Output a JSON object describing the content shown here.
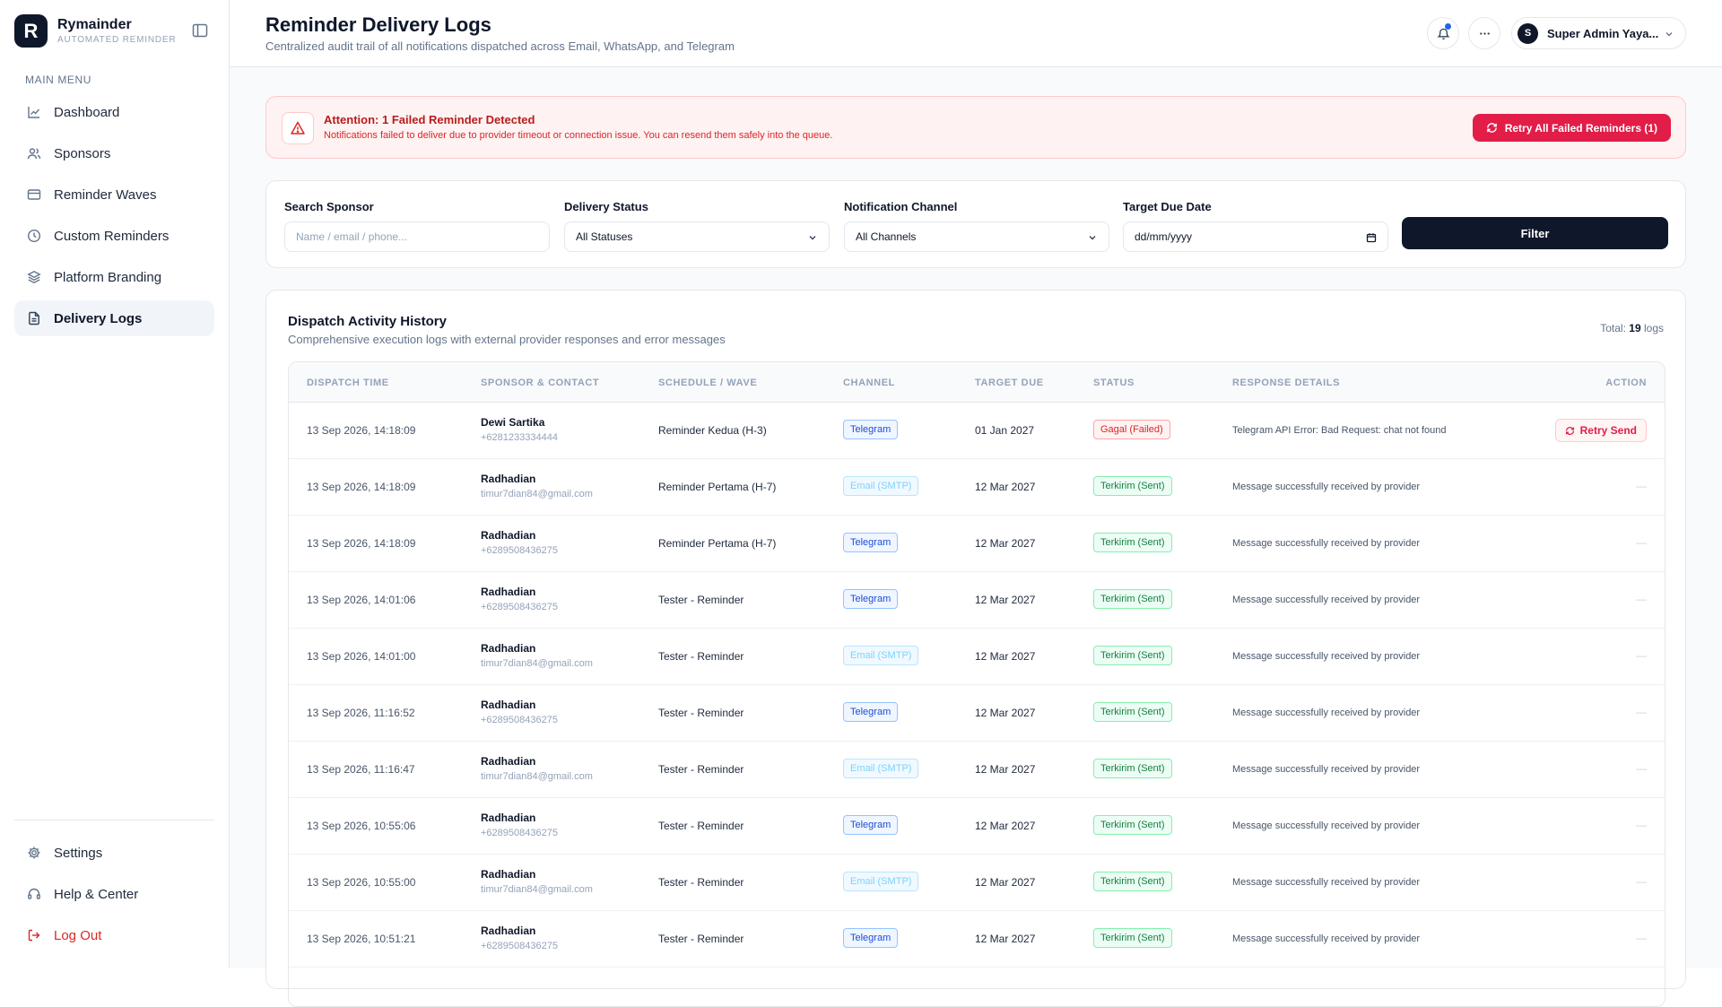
{
  "brand": {
    "logo_letter": "R",
    "name": "Rymainder",
    "tagline": "AUTOMATED REMINDER"
  },
  "sidebar": {
    "menu_label": "MAIN MENU",
    "items": [
      {
        "label": "Dashboard",
        "icon": "chart-line-icon"
      },
      {
        "label": "Sponsors",
        "icon": "users-icon"
      },
      {
        "label": "Reminder Waves",
        "icon": "card-icon"
      },
      {
        "label": "Custom Reminders",
        "icon": "clock-icon"
      },
      {
        "label": "Platform Branding",
        "icon": "layers-icon"
      },
      {
        "label": "Delivery Logs",
        "icon": "file-icon",
        "active": true
      }
    ],
    "bottom_items": [
      {
        "label": "Settings",
        "icon": "gear-icon"
      },
      {
        "label": "Help & Center",
        "icon": "headset-icon"
      },
      {
        "label": "Log Out",
        "icon": "logout-icon"
      }
    ]
  },
  "header": {
    "title": "Reminder Delivery Logs",
    "subtitle": "Centralized audit trail of all notifications dispatched across Email, WhatsApp, and Telegram",
    "user_initial": "S",
    "user_name": "Super Admin Yaya..."
  },
  "alert": {
    "title": "Attention: 1 Failed Reminder Detected",
    "text": "Notifications failed to deliver due to provider timeout or connection issue. You can resend them safely into the queue.",
    "button": "Retry All Failed Reminders (1)"
  },
  "filters": {
    "search": {
      "label": "Search Sponsor",
      "placeholder": "Name / email / phone..."
    },
    "status": {
      "label": "Delivery Status",
      "value": "All Statuses"
    },
    "channel": {
      "label": "Notification Channel",
      "value": "All Channels"
    },
    "date": {
      "label": "Target Due Date",
      "value": "dd/mm/yyyy"
    },
    "button": "Filter"
  },
  "table": {
    "title": "Dispatch Activity History",
    "subtitle": "Comprehensive execution logs with external provider responses and error messages",
    "total_label": "Total:",
    "total_count": "19",
    "total_unit": "logs",
    "columns": [
      "DISPATCH TIME",
      "SPONSOR & CONTACT",
      "SCHEDULE / WAVE",
      "CHANNEL",
      "TARGET DUE",
      "STATUS",
      "RESPONSE DETAILS",
      "ACTION"
    ],
    "rows": [
      {
        "time": "13 Sep 2026, 14:18:09",
        "name": "Dewi Sartika",
        "contact": "+6281233334444",
        "wave": "Reminder Kedua (H-3)",
        "channel": "Telegram",
        "due": "01 Jan 2027",
        "status": "Gagal (Failed)",
        "response": "Telegram API Error: Bad Request: chat not found",
        "action": "Retry Send"
      },
      {
        "time": "13 Sep 2026, 14:18:09",
        "name": "Radhadian",
        "contact": "timur7dian84@gmail.com",
        "wave": "Reminder Pertama (H-7)",
        "channel": "Email (SMTP)",
        "due": "12 Mar 2027",
        "status": "Terkirim (Sent)",
        "response": "Message successfully received by provider",
        "action": "—"
      },
      {
        "time": "13 Sep 2026, 14:18:09",
        "name": "Radhadian",
        "contact": "+6289508436275",
        "wave": "Reminder Pertama (H-7)",
        "channel": "Telegram",
        "due": "12 Mar 2027",
        "status": "Terkirim (Sent)",
        "response": "Message successfully received by provider",
        "action": "—"
      },
      {
        "time": "13 Sep 2026, 14:01:06",
        "name": "Radhadian",
        "contact": "+6289508436275",
        "wave": "Tester - Reminder",
        "channel": "Telegram",
        "due": "12 Mar 2027",
        "status": "Terkirim (Sent)",
        "response": "Message successfully received by provider",
        "action": "—"
      },
      {
        "time": "13 Sep 2026, 14:01:00",
        "name": "Radhadian",
        "contact": "timur7dian84@gmail.com",
        "wave": "Tester - Reminder",
        "channel": "Email (SMTP)",
        "due": "12 Mar 2027",
        "status": "Terkirim (Sent)",
        "response": "Message successfully received by provider",
        "action": "—"
      },
      {
        "time": "13 Sep 2026, 11:16:52",
        "name": "Radhadian",
        "contact": "+6289508436275",
        "wave": "Tester - Reminder",
        "channel": "Telegram",
        "due": "12 Mar 2027",
        "status": "Terkirim (Sent)",
        "response": "Message successfully received by provider",
        "action": "—"
      },
      {
        "time": "13 Sep 2026, 11:16:47",
        "name": "Radhadian",
        "contact": "timur7dian84@gmail.com",
        "wave": "Tester - Reminder",
        "channel": "Email (SMTP)",
        "due": "12 Mar 2027",
        "status": "Terkirim (Sent)",
        "response": "Message successfully received by provider",
        "action": "—"
      },
      {
        "time": "13 Sep 2026, 10:55:06",
        "name": "Radhadian",
        "contact": "+6289508436275",
        "wave": "Tester - Reminder",
        "channel": "Telegram",
        "due": "12 Mar 2027",
        "status": "Terkirim (Sent)",
        "response": "Message successfully received by provider",
        "action": "—"
      },
      {
        "time": "13 Sep 2026, 10:55:00",
        "name": "Radhadian",
        "contact": "timur7dian84@gmail.com",
        "wave": "Tester - Reminder",
        "channel": "Email (SMTP)",
        "due": "12 Mar 2027",
        "status": "Terkirim (Sent)",
        "response": "Message successfully received by provider",
        "action": "—"
      },
      {
        "time": "13 Sep 2026, 10:51:21",
        "name": "Radhadian",
        "contact": "+6289508436275",
        "wave": "Tester - Reminder",
        "channel": "Telegram",
        "due": "12 Mar 2027",
        "status": "Terkirim (Sent)",
        "response": "Message successfully received by provider",
        "action": "—"
      }
    ]
  },
  "colors": {
    "primary": "#0f172a",
    "danger": "#e11d48",
    "telegram": "#1d4ed8",
    "success": "#15803d",
    "notification_dot": "#2563eb"
  }
}
